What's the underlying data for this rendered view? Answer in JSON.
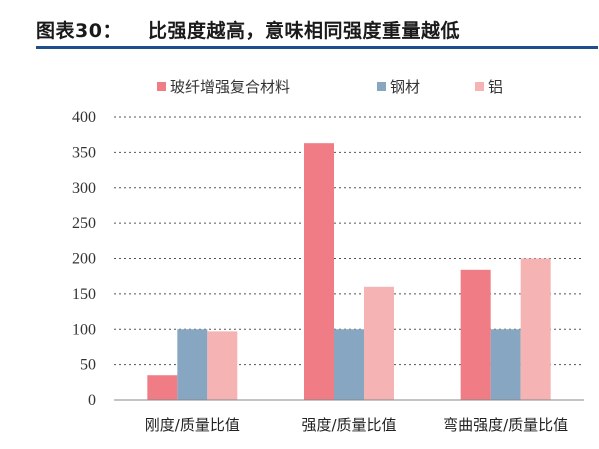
{
  "header": {
    "label": "图表30：",
    "title": "比强度越高，意味相同强度重量越低"
  },
  "colors": {
    "rule": "#1f4e8c",
    "grid": "#555555"
  },
  "chart_data": {
    "type": "bar",
    "categories": [
      "刚度/质量比值",
      "强度/质量比值",
      "弯曲强度/质量比值"
    ],
    "series": [
      {
        "name": "玻纤增强复合材料",
        "color": "#f07c86",
        "values": [
          35,
          363,
          184
        ]
      },
      {
        "name": "钢材",
        "color": "#86a6c2",
        "values": [
          100,
          100,
          100
        ]
      },
      {
        "name": "铝",
        "color": "#f5b3b3",
        "values": [
          97,
          160,
          200
        ]
      }
    ],
    "ylim": [
      0,
      400
    ],
    "yticks": [
      0,
      50,
      100,
      150,
      200,
      250,
      300,
      350,
      400
    ],
    "grid": true,
    "grid_style": "dotted",
    "legend_position": "top",
    "xlabel": "",
    "ylabel": ""
  }
}
